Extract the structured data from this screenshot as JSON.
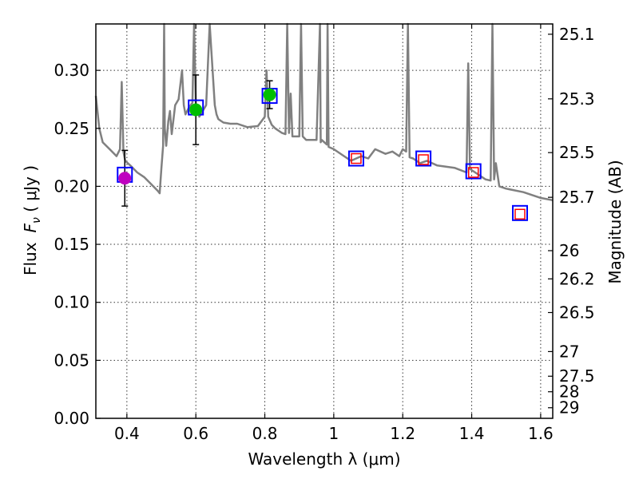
{
  "chart_data": {
    "type": "scatter",
    "xlabel": "Wavelength  λ (μm)",
    "ylabel_prefix": "Flux",
    "ylabel_symbol": "F",
    "ylabel_subscript": "ν",
    "ylabel_suffix": " ( μJy )",
    "y2label": "Magnitude (AB)",
    "xlim": [
      0.31,
      1.635
    ],
    "ylim": [
      0.0,
      0.34
    ],
    "grid": true,
    "x_ticks": [
      0.4,
      0.6,
      0.8,
      1.0,
      1.2,
      1.4,
      1.6
    ],
    "x_tick_labels": [
      "0.4",
      "0.6",
      "0.8",
      "1",
      "1.2",
      "1.4",
      "1.6"
    ],
    "y_ticks": [
      0.0,
      0.05,
      0.1,
      0.15,
      0.2,
      0.25,
      0.3
    ],
    "y_tick_labels": [
      "0.00",
      "0.05",
      "0.10",
      "0.15",
      "0.20",
      "0.25",
      "0.30"
    ],
    "mag_ticks": [
      25.1,
      25.3,
      25.5,
      25.7,
      26,
      26.2,
      26.5,
      27,
      27.5,
      28,
      29
    ],
    "mag_tick_labels": [
      "25.1",
      "25.3",
      "25.5",
      "25.7",
      "26",
      "26.2",
      "26.5",
      "27",
      "27.5",
      "28",
      "29"
    ],
    "model_spectrum": {
      "color": "#808080",
      "x": [
        0.31,
        0.32,
        0.33,
        0.35,
        0.37,
        0.38,
        0.385,
        0.39,
        0.395,
        0.41,
        0.43,
        0.45,
        0.47,
        0.49,
        0.495,
        0.5,
        0.505,
        0.508,
        0.51,
        0.514,
        0.52,
        0.525,
        0.53,
        0.54,
        0.55,
        0.56,
        0.565,
        0.57,
        0.58,
        0.59,
        0.595,
        0.6,
        0.61,
        0.62,
        0.63,
        0.64,
        0.655,
        0.66,
        0.665,
        0.67,
        0.68,
        0.7,
        0.72,
        0.75,
        0.78,
        0.8,
        0.805,
        0.81,
        0.82,
        0.83,
        0.85,
        0.86,
        0.865,
        0.87,
        0.875,
        0.88,
        0.9,
        0.905,
        0.91,
        0.92,
        0.95,
        0.96,
        0.962,
        0.965,
        0.98,
        0.982,
        0.985,
        1.0,
        1.03,
        1.05,
        1.08,
        1.1,
        1.12,
        1.15,
        1.17,
        1.19,
        1.2,
        1.21,
        1.215,
        1.22,
        1.23,
        1.25,
        1.27,
        1.3,
        1.35,
        1.385,
        1.39,
        1.395,
        1.4,
        1.42,
        1.44,
        1.455,
        1.46,
        1.465,
        1.47,
        1.48,
        1.5,
        1.55,
        1.6,
        1.635
      ],
      "y": [
        0.278,
        0.25,
        0.238,
        0.232,
        0.226,
        0.232,
        0.29,
        0.23,
        0.222,
        0.218,
        0.212,
        0.208,
        0.202,
        0.196,
        0.194,
        0.215,
        0.235,
        0.34,
        0.25,
        0.235,
        0.256,
        0.265,
        0.245,
        0.27,
        0.275,
        0.3,
        0.27,
        0.262,
        0.268,
        0.272,
        0.34,
        0.27,
        0.26,
        0.265,
        0.27,
        0.34,
        0.27,
        0.262,
        0.258,
        0.257,
        0.255,
        0.254,
        0.254,
        0.251,
        0.252,
        0.26,
        0.3,
        0.26,
        0.253,
        0.25,
        0.246,
        0.245,
        0.34,
        0.246,
        0.28,
        0.243,
        0.243,
        0.34,
        0.243,
        0.24,
        0.24,
        0.34,
        0.238,
        0.24,
        0.236,
        0.34,
        0.234,
        0.232,
        0.226,
        0.222,
        0.226,
        0.224,
        0.232,
        0.228,
        0.23,
        0.226,
        0.232,
        0.23,
        0.34,
        0.225,
        0.224,
        0.22,
        0.222,
        0.218,
        0.216,
        0.212,
        0.306,
        0.215,
        0.214,
        0.21,
        0.206,
        0.205,
        0.34,
        0.206,
        0.22,
        0.2,
        0.198,
        0.195,
        0.19,
        0.188
      ]
    },
    "observed_points": [
      {
        "x": 0.394,
        "y": 0.207,
        "err": 0.024,
        "color": "#bf00bf"
      },
      {
        "x": 0.6,
        "y": 0.266,
        "err": 0.03,
        "color": "#00bf00"
      },
      {
        "x": 0.814,
        "y": 0.279,
        "err": 0.012,
        "color": "#00bf00"
      }
    ],
    "model_photometry_blue": [
      {
        "x": 0.394,
        "y": 0.21
      },
      {
        "x": 0.6,
        "y": 0.268
      },
      {
        "x": 0.814,
        "y": 0.278
      },
      {
        "x": 1.065,
        "y": 0.224
      },
      {
        "x": 1.26,
        "y": 0.224
      },
      {
        "x": 1.405,
        "y": 0.213
      },
      {
        "x": 1.54,
        "y": 0.177
      }
    ],
    "model_photometry_red": [
      {
        "x": 1.065,
        "y": 0.224
      },
      {
        "x": 1.26,
        "y": 0.223
      },
      {
        "x": 1.405,
        "y": 0.212
      },
      {
        "x": 1.54,
        "y": 0.176
      }
    ],
    "colors": {
      "blue_square": "#0000ff",
      "red_square": "#ff0000",
      "errorbar": "#000000"
    }
  }
}
